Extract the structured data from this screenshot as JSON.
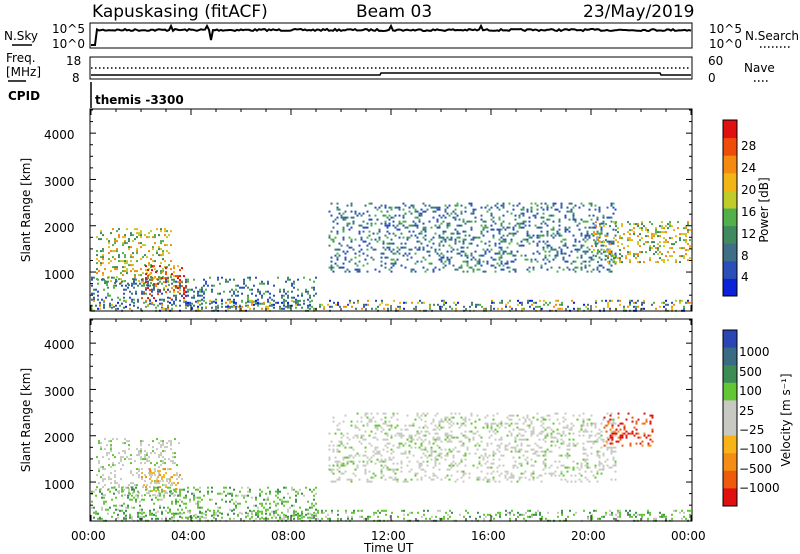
{
  "header": {
    "title": "Kapuskasing (fitACF)",
    "beam": "Beam 03",
    "date": "23/May/2019"
  },
  "left_labels": {
    "nsky": "N.Sky",
    "freq_line1": "Freq.",
    "freq_line2": "[MHz]",
    "cpid": "CPID"
  },
  "right_labels": {
    "nsearch": "N.Search",
    "nave": "Nave"
  },
  "cpid_value": "themis -3300",
  "colors": {
    "power_scale": [
      "#0b22d8",
      "#2a4fb8",
      "#3e6f86",
      "#3f8a5e",
      "#52b04a",
      "#bfcc2a",
      "#f3b416",
      "#f58a10",
      "#ef4c0c",
      "#e01010"
    ],
    "velocity_scale": [
      "#2b45b5",
      "#3a6b84",
      "#3b8c55",
      "#63c634",
      "#c9c9c4",
      "#c9c9c4",
      "#f7b317",
      "#f58c13",
      "#ef5b0c",
      "#e01010"
    ],
    "noise_line": "#000000",
    "freq_line": "#000000"
  },
  "chart_data": [
    {
      "type": "line",
      "name": "noise-panel",
      "left_axis_ticks": [
        "10^5",
        "10^0"
      ],
      "right_axis_ticks": [
        "10^5",
        "10^0"
      ],
      "series": [
        {
          "name": "N.Sky",
          "style": "solid",
          "approx_level": "~10^3, roughly flat"
        },
        {
          "name": "N.Search",
          "style": "dotted"
        }
      ]
    },
    {
      "type": "line",
      "name": "frequency-nave-panel",
      "left_axis_ticks": [
        "18",
        "8"
      ],
      "right_axis_ticks": [
        "60",
        "0"
      ],
      "series": [
        {
          "name": "Freq. [MHz]",
          "style": "solid",
          "approx_value": 10
        },
        {
          "name": "Nave",
          "style": "dotted",
          "approx_value": 25
        }
      ]
    },
    {
      "type": "heatmap",
      "name": "power",
      "ylabel": "Slant Range [km]",
      "yticks": [
        "4000",
        "3000",
        "2000",
        "1000"
      ],
      "ylim": [
        180,
        4500
      ],
      "xlim_hours": [
        0,
        24
      ],
      "colorbar_label": "Power [dB]",
      "colorbar_ticks": [
        "28",
        "24",
        "20",
        "16",
        "12",
        "8",
        "4"
      ],
      "colorbar_range": [
        0,
        30
      ],
      "echo_regions": [
        {
          "t_start": 0.2,
          "t_end": 3.2,
          "range_start": 700,
          "range_end": 1950,
          "level": "medium-high"
        },
        {
          "t_start": 2.0,
          "t_end": 3.8,
          "range_start": 450,
          "range_end": 1150,
          "level": "high"
        },
        {
          "t_start": 0.0,
          "t_end": 9.0,
          "range_start": 250,
          "range_end": 900,
          "level": "low-medium"
        },
        {
          "t_start": 9.5,
          "t_end": 21.0,
          "range_start": 1000,
          "range_end": 2500,
          "level": "low-medium"
        },
        {
          "t_start": 20.0,
          "t_end": 24.0,
          "range_start": 1200,
          "range_end": 2100,
          "level": "medium-high"
        },
        {
          "t_start": 0.0,
          "t_end": 24.0,
          "range_start": 180,
          "range_end": 400,
          "level": "mixed"
        }
      ]
    },
    {
      "type": "heatmap",
      "name": "velocity",
      "ylabel": "Slant Range [km]",
      "yticks": [
        "4000",
        "3000",
        "2000",
        "1000"
      ],
      "ylim": [
        180,
        4500
      ],
      "xlim_hours": [
        0,
        24
      ],
      "xticks": [
        "00:00",
        "04:00",
        "08:00",
        "12:00",
        "16:00",
        "20:00",
        "00:00"
      ],
      "xlabel": "Time UT",
      "colorbar_label": "Velocity [m s⁻¹]",
      "colorbar_ticks": [
        "1000",
        "500",
        "100",
        "25",
        "−25",
        "−100",
        "−500",
        "−1000"
      ],
      "echo_regions": [
        {
          "t_start": 0.2,
          "t_end": 3.5,
          "range_start": 700,
          "range_end": 1950,
          "level": "near-zero"
        },
        {
          "t_start": 2.0,
          "t_end": 3.8,
          "range_start": 800,
          "range_end": 1300,
          "level": "away"
        },
        {
          "t_start": 0.0,
          "t_end": 9.0,
          "range_start": 250,
          "range_end": 900,
          "level": "toward-weak"
        },
        {
          "t_start": 9.5,
          "t_end": 21.0,
          "range_start": 1000,
          "range_end": 2500,
          "level": "near-zero"
        },
        {
          "t_start": 20.5,
          "t_end": 22.5,
          "range_start": 1800,
          "range_end": 2500,
          "level": "away-strong"
        },
        {
          "t_start": 0.0,
          "t_end": 24.0,
          "range_start": 180,
          "range_end": 400,
          "level": "toward-weak"
        }
      ]
    }
  ]
}
